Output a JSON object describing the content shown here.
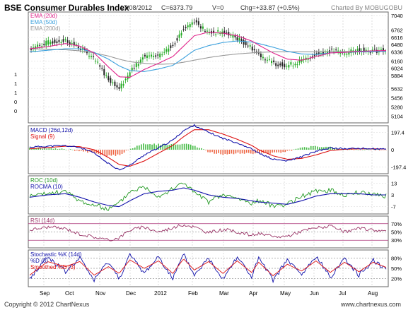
{
  "header": {
    "title": "BSE Consumer Durables Index",
    "date": "17/08/2012",
    "close": "C=6373.79",
    "volume": "V=0",
    "change": "Chg=+33.87 (+0.5%)",
    "credit": "Charted By MOBUGOBU"
  },
  "footer": {
    "copyright": "Copyright © 2012 ChartNexus",
    "site": "www.chartnexus.com"
  },
  "colors": {
    "up": "#22aa22",
    "down": "#222222",
    "ema20": "#e0228a",
    "ema50": "#3aa0dd",
    "ema200": "#9a9a9a",
    "macd": "#1111aa",
    "signal": "#dd1111",
    "roc": "#229922",
    "rocma": "#1111aa",
    "rsi": "#993366",
    "stoch_k": "#1111aa",
    "stoch_d": "#dd1111"
  },
  "chart_data": [
    {
      "type": "candlestick",
      "panel": "price",
      "legend": [
        "EMA (20d)",
        "EMA (50d)",
        "EMA (200d)"
      ],
      "x_ticks": [
        "Sep",
        "Oct",
        "Nov",
        "Dec",
        "2012",
        "Feb",
        "Mar",
        "Apr",
        "May",
        "Jun",
        "Jul",
        "Aug"
      ],
      "y_ticks": [
        7040,
        6762,
        6616,
        6480,
        6336,
        6160,
        6024,
        5884,
        5632,
        5456,
        5280,
        5104
      ],
      "left_ticks": [
        "1",
        "1",
        "1",
        "0",
        "0"
      ],
      "ylim": [
        5000,
        7080
      ],
      "anchors": {
        "x": [
          0,
          25,
          50,
          70,
          90,
          110,
          125,
          140,
          160,
          180,
          200,
          215,
          230,
          250,
          270,
          290,
          310,
          320,
          340,
          360,
          380,
          400,
          420,
          440,
          460,
          480,
          499
        ],
        "close": [
          6400,
          6520,
          6560,
          6420,
          6200,
          5820,
          5640,
          5950,
          6260,
          6240,
          6480,
          6780,
          6940,
          6700,
          6720,
          6600,
          6420,
          6300,
          6120,
          6080,
          6160,
          6300,
          6360,
          6320,
          6380,
          6360,
          6374
        ],
        "ema20": [
          6400,
          6440,
          6500,
          6450,
          6320,
          6050,
          5860,
          5850,
          6000,
          6120,
          6250,
          6450,
          6650,
          6720,
          6700,
          6650,
          6550,
          6470,
          6320,
          6200,
          6180,
          6250,
          6320,
          6330,
          6350,
          6360,
          6365
        ],
        "ema50": [
          6340,
          6370,
          6400,
          6400,
          6330,
          6200,
          6070,
          5980,
          5960,
          6010,
          6080,
          6220,
          6370,
          6460,
          6520,
          6550,
          6530,
          6500,
          6430,
          6350,
          6300,
          6290,
          6320,
          6330,
          6340,
          6345,
          6350
        ],
        "ema200": [
          6400,
          6390,
          6380,
          6360,
          6320,
          6260,
          6200,
          6150,
          6120,
          6100,
          6110,
          6140,
          6180,
          6230,
          6270,
          6300,
          6320,
          6330,
          6340,
          6340,
          6340,
          6340,
          6345,
          6345,
          6350,
          6350,
          6352
        ]
      }
    },
    {
      "type": "line",
      "panel": "macd",
      "legend": [
        "MACD (26d,12d)",
        "Signal (9)"
      ],
      "y_ticks": [
        197.4,
        0,
        -197.4
      ],
      "ylim": [
        -260,
        260
      ],
      "anchors": {
        "x": [
          0,
          25,
          50,
          70,
          90,
          110,
          125,
          140,
          160,
          180,
          200,
          215,
          230,
          250,
          270,
          290,
          310,
          320,
          340,
          360,
          380,
          400,
          420,
          440,
          460,
          480,
          499
        ],
        "macd": [
          30,
          40,
          45,
          25,
          -40,
          -160,
          -230,
          -180,
          -60,
          20,
          110,
          220,
          280,
          200,
          130,
          80,
          10,
          -40,
          -110,
          -130,
          -80,
          -20,
          20,
          10,
          15,
          10,
          5
        ],
        "signal": [
          10,
          25,
          40,
          35,
          0,
          -90,
          -170,
          -190,
          -130,
          -40,
          50,
          150,
          230,
          230,
          180,
          120,
          50,
          0,
          -70,
          -110,
          -100,
          -60,
          -10,
          5,
          10,
          10,
          8
        ]
      }
    },
    {
      "type": "line",
      "panel": "roc",
      "legend": [
        "ROC (10d)",
        "ROCMA (10)"
      ],
      "y_ticks": [
        13,
        3,
        -7
      ],
      "ylim": [
        -12,
        18
      ],
      "anchors": {
        "x": [
          0,
          25,
          50,
          70,
          90,
          110,
          125,
          140,
          160,
          180,
          200,
          215,
          230,
          250,
          270,
          290,
          310,
          320,
          340,
          360,
          380,
          400,
          420,
          440,
          460,
          480,
          499
        ],
        "roc": [
          2,
          4,
          6,
          -2,
          -6,
          -9,
          -4,
          6,
          10,
          2,
          8,
          14,
          5,
          -3,
          3,
          0,
          -4,
          -2,
          -6,
          -5,
          2,
          6,
          7,
          3,
          5,
          4,
          2
        ],
        "rocma": [
          1,
          3,
          4,
          1,
          -3,
          -6,
          -7,
          -2,
          4,
          6,
          7,
          9,
          7,
          3,
          1,
          0,
          -2,
          -3,
          -4,
          -5,
          -2,
          2,
          4,
          4,
          4,
          3,
          3
        ]
      }
    },
    {
      "type": "line",
      "panel": "rsi",
      "legend": [
        "RSI (14d)"
      ],
      "y_ticks": [
        "70%",
        "50%",
        "30%"
      ],
      "ylim": [
        15,
        85
      ],
      "anchors": {
        "x": [
          0,
          25,
          50,
          70,
          90,
          110,
          125,
          140,
          160,
          180,
          200,
          215,
          230,
          250,
          270,
          290,
          310,
          320,
          340,
          360,
          380,
          400,
          420,
          440,
          460,
          480,
          499
        ],
        "rsi": [
          55,
          62,
          58,
          45,
          38,
          30,
          36,
          55,
          62,
          50,
          60,
          68,
          62,
          48,
          56,
          50,
          42,
          46,
          38,
          40,
          52,
          60,
          64,
          50,
          58,
          55,
          52
        ]
      }
    },
    {
      "type": "line",
      "panel": "stochastic",
      "legend": [
        "Stochastic %K (14d)",
        "%D (3)",
        "Smoothed %D (3)"
      ],
      "y_ticks": [
        "80%",
        "50%",
        "20%"
      ],
      "ylim": [
        0,
        100
      ],
      "anchors": {
        "x": [
          0,
          25,
          50,
          70,
          90,
          110,
          125,
          140,
          160,
          180,
          200,
          215,
          230,
          250,
          270,
          290,
          310,
          320,
          340,
          360,
          380,
          400,
          420,
          440,
          460,
          480,
          499
        ],
        "k": [
          20,
          85,
          40,
          80,
          15,
          70,
          20,
          90,
          35,
          85,
          20,
          90,
          30,
          80,
          20,
          85,
          25,
          80,
          15,
          75,
          30,
          85,
          25,
          80,
          30,
          75,
          45
        ],
        "d": [
          30,
          70,
          55,
          70,
          30,
          55,
          35,
          75,
          50,
          72,
          35,
          78,
          45,
          70,
          35,
          72,
          38,
          68,
          28,
          62,
          42,
          72,
          38,
          68,
          40,
          68,
          52
        ]
      }
    }
  ]
}
